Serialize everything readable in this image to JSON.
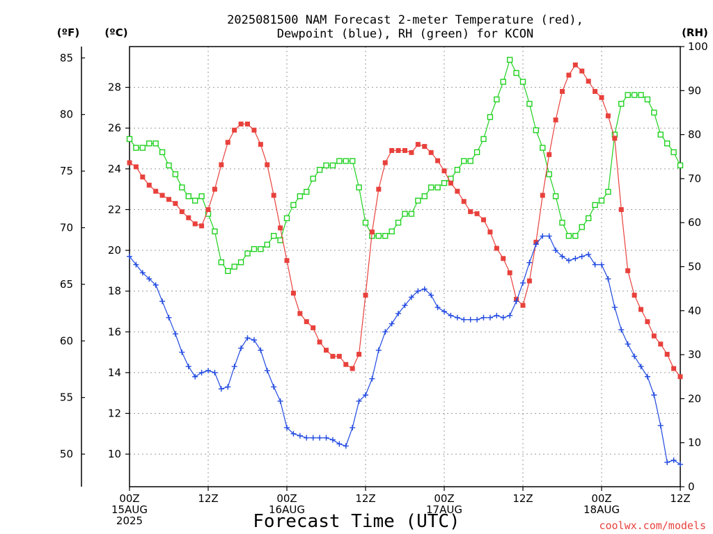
{
  "chart_data": {
    "type": "line",
    "title_lines": [
      "2025081500 NAM Forecast 2-meter Temperature (red),",
      "Dewpoint (blue), RH (green) for KCON"
    ],
    "units": {
      "left_f": "(ºF)",
      "left_c": "(ºC)",
      "right_rh": "(RH)"
    },
    "xlabel": "Forecast Time (UTC)",
    "credit": "coolwx.com/models",
    "x_range_hours": [
      0,
      84
    ],
    "x_ticks": [
      {
        "hour": 0,
        "lines": [
          "00Z",
          "15AUG",
          "2025"
        ]
      },
      {
        "hour": 12,
        "lines": [
          "12Z"
        ]
      },
      {
        "hour": 24,
        "lines": [
          "00Z",
          "16AUG"
        ]
      },
      {
        "hour": 36,
        "lines": [
          "12Z"
        ]
      },
      {
        "hour": 48,
        "lines": [
          "00Z",
          "17AUG"
        ]
      },
      {
        "hour": 60,
        "lines": [
          "12Z"
        ]
      },
      {
        "hour": 72,
        "lines": [
          "00Z",
          "18AUG"
        ]
      },
      {
        "hour": 84,
        "lines": [
          "12Z"
        ]
      }
    ],
    "y_c_range": [
      8.4,
      30
    ],
    "y_c_ticks": [
      10,
      12,
      14,
      16,
      18,
      20,
      22,
      24,
      26,
      28
    ],
    "y_f_ticks": [
      50,
      55,
      60,
      65,
      70,
      75,
      80,
      85
    ],
    "y_rh_range": [
      0,
      100
    ],
    "y_rh_ticks": [
      0,
      10,
      20,
      30,
      40,
      50,
      60,
      70,
      80,
      90,
      100
    ],
    "grid": true,
    "colors": {
      "temperature": "#e8413c",
      "dewpoint": "#1f48e0",
      "rh": "#1fd11f"
    },
    "series": [
      {
        "name": "2-meter Temperature",
        "unit": "C",
        "values": [
          [
            0,
            24.3
          ],
          [
            1,
            24.1
          ],
          [
            2,
            23.6
          ],
          [
            3,
            23.2
          ],
          [
            4,
            22.9
          ],
          [
            5,
            22.7
          ],
          [
            6,
            22.5
          ],
          [
            7,
            22.3
          ],
          [
            8,
            21.9
          ],
          [
            9,
            21.6
          ],
          [
            10,
            21.3
          ],
          [
            11,
            21.2
          ],
          [
            12,
            22.0
          ],
          [
            13,
            23.0
          ],
          [
            14,
            24.2
          ],
          [
            15,
            25.3
          ],
          [
            16,
            25.9
          ],
          [
            17,
            26.2
          ],
          [
            18,
            26.2
          ],
          [
            19,
            25.9
          ],
          [
            20,
            25.2
          ],
          [
            21,
            24.2
          ],
          [
            22,
            22.7
          ],
          [
            23,
            21.1
          ],
          [
            24,
            19.5
          ],
          [
            25,
            17.9
          ],
          [
            26,
            16.9
          ],
          [
            27,
            16.5
          ],
          [
            28,
            16.2
          ],
          [
            29,
            15.5
          ],
          [
            30,
            15.1
          ],
          [
            31,
            14.8
          ],
          [
            32,
            14.8
          ],
          [
            33,
            14.4
          ],
          [
            34,
            14.2
          ],
          [
            35,
            14.9
          ],
          [
            36,
            17.8
          ],
          [
            37,
            20.9
          ],
          [
            38,
            23.0
          ],
          [
            39,
            24.3
          ],
          [
            40,
            24.9
          ],
          [
            41,
            24.9
          ],
          [
            42,
            24.9
          ],
          [
            43,
            24.8
          ],
          [
            44,
            25.2
          ],
          [
            45,
            25.1
          ],
          [
            46,
            24.8
          ],
          [
            47,
            24.4
          ],
          [
            48,
            23.9
          ],
          [
            49,
            23.3
          ],
          [
            50,
            22.9
          ],
          [
            51,
            22.4
          ],
          [
            52,
            21.9
          ],
          [
            53,
            21.8
          ],
          [
            54,
            21.5
          ],
          [
            55,
            20.9
          ],
          [
            56,
            20.1
          ],
          [
            57,
            19.6
          ],
          [
            58,
            18.9
          ],
          [
            59,
            17.6
          ],
          [
            60,
            17.3
          ],
          [
            61,
            18.5
          ],
          [
            62,
            20.4
          ],
          [
            63,
            22.7
          ],
          [
            64,
            24.7
          ],
          [
            65,
            26.4
          ],
          [
            66,
            27.8
          ],
          [
            67,
            28.6
          ],
          [
            68,
            29.1
          ],
          [
            69,
            28.8
          ],
          [
            70,
            28.3
          ],
          [
            71,
            27.8
          ],
          [
            72,
            27.5
          ],
          [
            73,
            26.6
          ],
          [
            74,
            25.5
          ],
          [
            75,
            22.0
          ],
          [
            76,
            19.0
          ],
          [
            77,
            17.8
          ],
          [
            78,
            17.1
          ],
          [
            79,
            16.5
          ],
          [
            80,
            15.8
          ],
          [
            81,
            15.4
          ],
          [
            82,
            14.9
          ],
          [
            83,
            14.2
          ],
          [
            84,
            13.8
          ]
        ]
      },
      {
        "name": "Dewpoint",
        "unit": "C",
        "values": [
          [
            0,
            19.7
          ],
          [
            1,
            19.3
          ],
          [
            2,
            18.9
          ],
          [
            3,
            18.6
          ],
          [
            4,
            18.3
          ],
          [
            5,
            17.5
          ],
          [
            6,
            16.7
          ],
          [
            7,
            15.9
          ],
          [
            8,
            15.0
          ],
          [
            9,
            14.3
          ],
          [
            10,
            13.8
          ],
          [
            11,
            14.0
          ],
          [
            12,
            14.1
          ],
          [
            13,
            14.0
          ],
          [
            14,
            13.2
          ],
          [
            15,
            13.3
          ],
          [
            16,
            14.3
          ],
          [
            17,
            15.2
          ],
          [
            18,
            15.7
          ],
          [
            19,
            15.6
          ],
          [
            20,
            15.1
          ],
          [
            21,
            14.1
          ],
          [
            22,
            13.3
          ],
          [
            23,
            12.6
          ],
          [
            24,
            11.3
          ],
          [
            25,
            11.0
          ],
          [
            26,
            10.9
          ],
          [
            27,
            10.8
          ],
          [
            28,
            10.8
          ],
          [
            29,
            10.8
          ],
          [
            30,
            10.8
          ],
          [
            31,
            10.7
          ],
          [
            32,
            10.5
          ],
          [
            33,
            10.4
          ],
          [
            34,
            11.3
          ],
          [
            35,
            12.6
          ],
          [
            36,
            12.9
          ],
          [
            37,
            13.7
          ],
          [
            38,
            15.1
          ],
          [
            39,
            16.0
          ],
          [
            40,
            16.4
          ],
          [
            41,
            16.9
          ],
          [
            42,
            17.3
          ],
          [
            43,
            17.7
          ],
          [
            44,
            18.0
          ],
          [
            45,
            18.1
          ],
          [
            46,
            17.8
          ],
          [
            47,
            17.2
          ],
          [
            48,
            17.0
          ],
          [
            49,
            16.8
          ],
          [
            50,
            16.7
          ],
          [
            51,
            16.6
          ],
          [
            52,
            16.6
          ],
          [
            53,
            16.6
          ],
          [
            54,
            16.7
          ],
          [
            55,
            16.7
          ],
          [
            56,
            16.8
          ],
          [
            57,
            16.7
          ],
          [
            58,
            16.8
          ],
          [
            59,
            17.5
          ],
          [
            60,
            18.4
          ],
          [
            61,
            19.4
          ],
          [
            62,
            20.3
          ],
          [
            63,
            20.7
          ],
          [
            64,
            20.7
          ],
          [
            65,
            20.0
          ],
          [
            66,
            19.7
          ],
          [
            67,
            19.5
          ],
          [
            68,
            19.6
          ],
          [
            69,
            19.7
          ],
          [
            70,
            19.8
          ],
          [
            71,
            19.3
          ],
          [
            72,
            19.3
          ],
          [
            73,
            18.6
          ],
          [
            74,
            17.2
          ],
          [
            75,
            16.1
          ],
          [
            76,
            15.4
          ],
          [
            77,
            14.8
          ],
          [
            78,
            14.3
          ],
          [
            79,
            13.8
          ],
          [
            80,
            12.9
          ],
          [
            81,
            11.4
          ],
          [
            82,
            9.6
          ],
          [
            83,
            9.7
          ],
          [
            84,
            9.5
          ]
        ]
      },
      {
        "name": "RH",
        "unit": "%",
        "values": [
          [
            0,
            79
          ],
          [
            1,
            77
          ],
          [
            2,
            77
          ],
          [
            3,
            78
          ],
          [
            4,
            78
          ],
          [
            5,
            76
          ],
          [
            6,
            73
          ],
          [
            7,
            71
          ],
          [
            8,
            68
          ],
          [
            9,
            66
          ],
          [
            10,
            65
          ],
          [
            11,
            66
          ],
          [
            12,
            62
          ],
          [
            13,
            58
          ],
          [
            14,
            51
          ],
          [
            15,
            49
          ],
          [
            16,
            50
          ],
          [
            17,
            51
          ],
          [
            18,
            53
          ],
          [
            19,
            54
          ],
          [
            20,
            54
          ],
          [
            21,
            55
          ],
          [
            22,
            57
          ],
          [
            23,
            56
          ],
          [
            24,
            61
          ],
          [
            25,
            64
          ],
          [
            26,
            66
          ],
          [
            27,
            67
          ],
          [
            28,
            70
          ],
          [
            29,
            72
          ],
          [
            30,
            73
          ],
          [
            31,
            73
          ],
          [
            32,
            74
          ],
          [
            33,
            74
          ],
          [
            34,
            74
          ],
          [
            35,
            68
          ],
          [
            36,
            60
          ],
          [
            37,
            57
          ],
          [
            38,
            57
          ],
          [
            39,
            57
          ],
          [
            40,
            58
          ],
          [
            41,
            60
          ],
          [
            42,
            62
          ],
          [
            43,
            62
          ],
          [
            44,
            65
          ],
          [
            45,
            66
          ],
          [
            46,
            68
          ],
          [
            47,
            68
          ],
          [
            48,
            69
          ],
          [
            49,
            70
          ],
          [
            50,
            72
          ],
          [
            51,
            74
          ],
          [
            52,
            74
          ],
          [
            53,
            76
          ],
          [
            54,
            79
          ],
          [
            55,
            84
          ],
          [
            56,
            88
          ],
          [
            57,
            92
          ],
          [
            58,
            97
          ],
          [
            59,
            94
          ],
          [
            60,
            92
          ],
          [
            61,
            87
          ],
          [
            62,
            81
          ],
          [
            63,
            77
          ],
          [
            64,
            71
          ],
          [
            65,
            66
          ],
          [
            66,
            60
          ],
          [
            67,
            57
          ],
          [
            68,
            57
          ],
          [
            69,
            59
          ],
          [
            70,
            61
          ],
          [
            71,
            64
          ],
          [
            72,
            65
          ],
          [
            73,
            67
          ],
          [
            74,
            80
          ],
          [
            75,
            87
          ],
          [
            76,
            89
          ],
          [
            77,
            89
          ],
          [
            78,
            89
          ],
          [
            79,
            88
          ],
          [
            80,
            85
          ],
          [
            81,
            80
          ],
          [
            82,
            78
          ],
          [
            83,
            76
          ],
          [
            84,
            73
          ]
        ]
      }
    ]
  }
}
